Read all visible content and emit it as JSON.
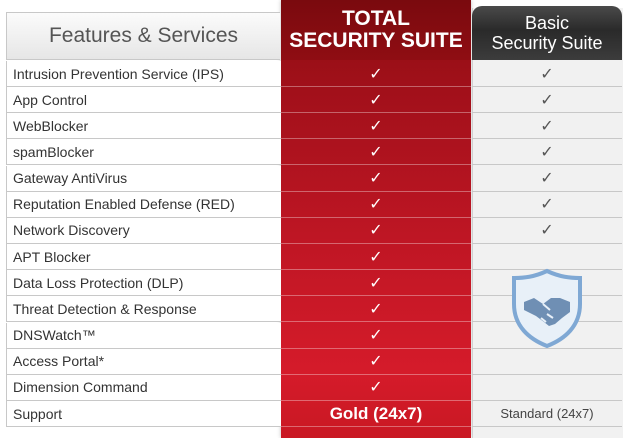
{
  "header": {
    "features_label": "Features & Services",
    "total_line1": "TOTAL",
    "total_line2": "SECURITY SUITE",
    "basic_line1": "Basic",
    "basic_line2": "Security Suite"
  },
  "check_glyph": "✓",
  "rows": [
    {
      "feature": "Intrusion Prevention Service (IPS)",
      "total": true,
      "basic": true
    },
    {
      "feature": "App Control",
      "total": true,
      "basic": true
    },
    {
      "feature": "WebBlocker",
      "total": true,
      "basic": true
    },
    {
      "feature": "spamBlocker",
      "total": true,
      "basic": true
    },
    {
      "feature": "Gateway AntiVirus",
      "total": true,
      "basic": true
    },
    {
      "feature": "Reputation Enabled Defense (RED)",
      "total": true,
      "basic": true
    },
    {
      "feature": "Network Discovery",
      "total": true,
      "basic": true
    },
    {
      "feature": "APT Blocker",
      "total": true,
      "basic": false
    },
    {
      "feature": "Data Loss Protection (DLP)",
      "total": true,
      "basic": false
    },
    {
      "feature": "Threat Detection & Response",
      "total": true,
      "basic": false
    },
    {
      "feature": "DNSWatch™",
      "total": true,
      "basic": false
    },
    {
      "feature": "Access Portal*",
      "total": true,
      "basic": false
    },
    {
      "feature": "Dimension Command",
      "total": true,
      "basic": false
    }
  ],
  "support": {
    "label": "Support",
    "total": "Gold (24x7)",
    "basic": "Standard (24x7)"
  },
  "icons": {
    "basic_badge": "handshake-shield-icon"
  },
  "colors": {
    "total_red": "#c0141f",
    "basic_dark": "#333333",
    "shield_blue": "#6f9fd0"
  }
}
